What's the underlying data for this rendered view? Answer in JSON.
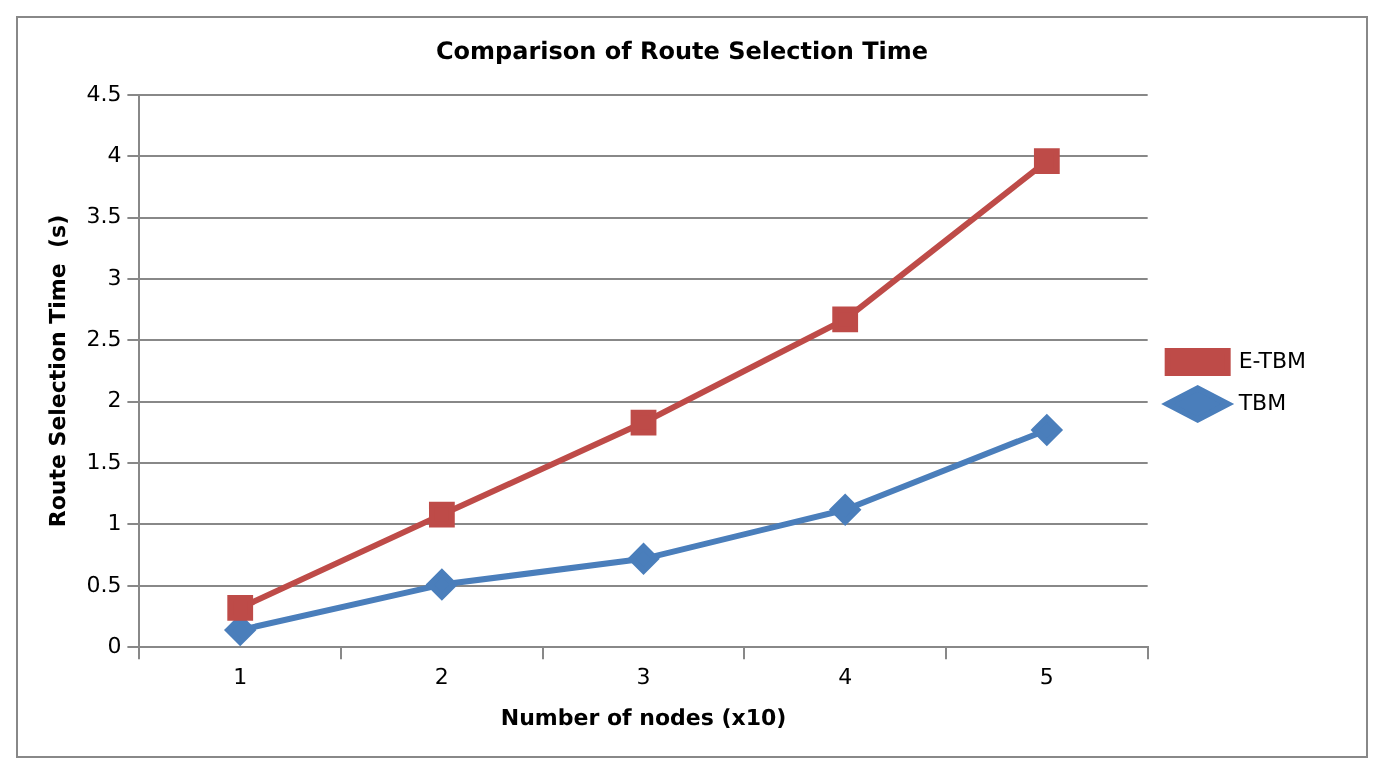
{
  "chart_data": {
    "type": "line",
    "title": "Comparison of Route Selection Time",
    "xlabel": "Number of nodes (x10)",
    "ylabel": "Route Selection Time  (s)",
    "categories": [
      "1",
      "2",
      "3",
      "4",
      "5"
    ],
    "series": [
      {
        "name": "E-TBM",
        "color": "#be4b48",
        "marker": "square",
        "values": [
          0.32,
          1.08,
          1.83,
          2.67,
          3.96
        ]
      },
      {
        "name": "TBM",
        "color": "#4a7ebb",
        "marker": "diamond",
        "values": [
          0.14,
          0.51,
          0.72,
          1.12,
          1.77
        ]
      }
    ],
    "ylim": [
      0,
      4.5
    ],
    "yticks": [
      0,
      0.5,
      1,
      1.5,
      2,
      2.5,
      3,
      3.5,
      4,
      4.5
    ],
    "grid": "y",
    "legend": "right",
    "line_style": "solid"
  }
}
